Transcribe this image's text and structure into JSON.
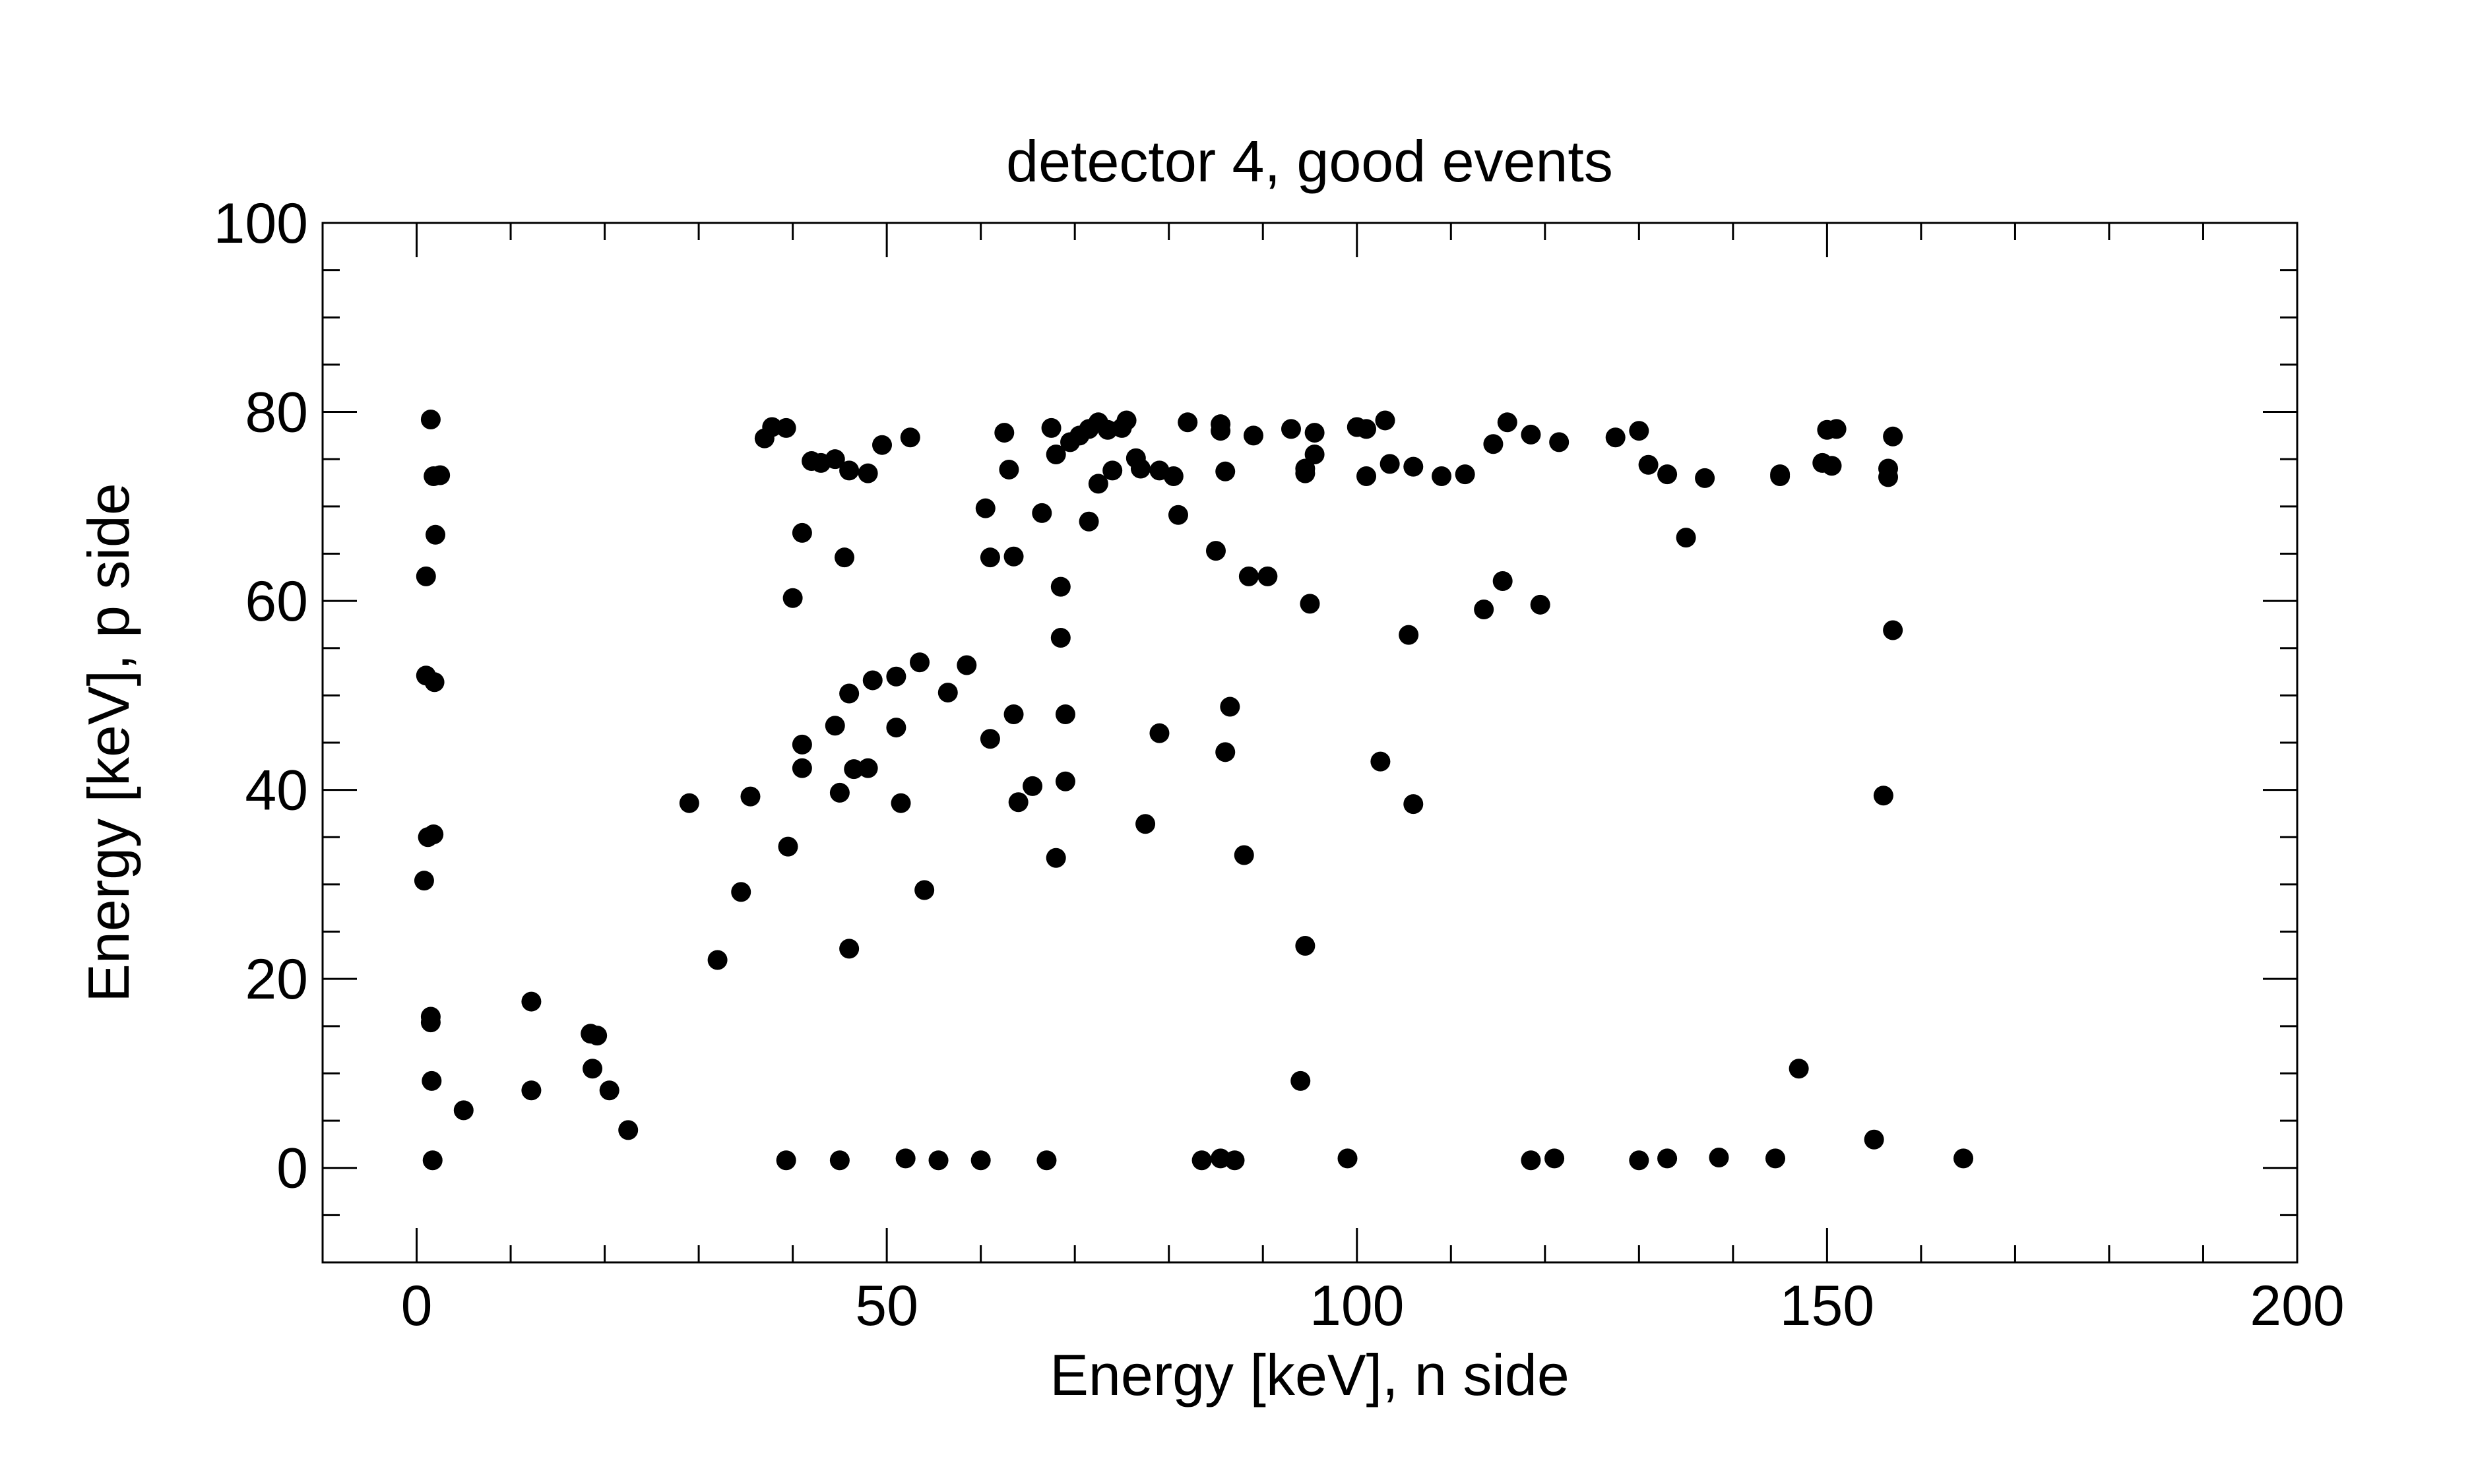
{
  "chart_data": {
    "type": "scatter",
    "title": "detector 4, good events",
    "xlabel": "Energy [keV], n side",
    "ylabel": "Energy [keV], p side",
    "xlim": [
      -10,
      200
    ],
    "ylim": [
      -10,
      100
    ],
    "x_ticks": [
      0,
      50,
      100,
      150,
      200
    ],
    "y_ticks": [
      0,
      20,
      40,
      60,
      80,
      100
    ],
    "x_minor_step": 10,
    "y_minor_step": 5,
    "grid": false,
    "legend": "none",
    "marker_color": "#000000",
    "series": [
      {
        "points": [
          [
            1.5,
            79.2
          ],
          [
            1.8,
            73.2
          ],
          [
            2.5,
            73.3
          ],
          [
            2.0,
            67.0
          ],
          [
            1.0,
            62.6
          ],
          [
            1.0,
            52.1
          ],
          [
            1.9,
            51.4
          ],
          [
            1.2,
            35.0
          ],
          [
            1.8,
            35.3
          ],
          [
            0.8,
            30.4
          ],
          [
            1.5,
            16.0
          ],
          [
            1.5,
            15.4
          ],
          [
            1.6,
            9.2
          ],
          [
            1.7,
            0.8
          ],
          [
            5.0,
            6.1
          ],
          [
            12.2,
            17.6
          ],
          [
            12.2,
            8.2
          ],
          [
            18.5,
            14.2
          ],
          [
            19.2,
            14.0
          ],
          [
            18.7,
            10.5
          ],
          [
            20.5,
            8.2
          ],
          [
            22.5,
            4.0
          ],
          [
            29.0,
            38.6
          ],
          [
            32.0,
            22.0
          ],
          [
            34.5,
            29.2
          ],
          [
            35.5,
            39.3
          ],
          [
            37.0,
            77.2
          ],
          [
            37.8,
            78.4
          ],
          [
            39.3,
            78.3
          ],
          [
            40.0,
            60.3
          ],
          [
            39.5,
            34.0
          ],
          [
            39.3,
            0.8
          ],
          [
            41.0,
            67.2
          ],
          [
            41.0,
            44.8
          ],
          [
            41.0,
            42.3
          ],
          [
            42.0,
            74.8
          ],
          [
            43.0,
            74.6
          ],
          [
            44.5,
            75.0
          ],
          [
            44.5,
            46.8
          ],
          [
            45.0,
            39.7
          ],
          [
            45.5,
            64.6
          ],
          [
            45.0,
            0.8
          ],
          [
            46.0,
            73.8
          ],
          [
            46.0,
            50.2
          ],
          [
            46.0,
            23.2
          ],
          [
            46.5,
            42.2
          ],
          [
            48.0,
            73.5
          ],
          [
            48.0,
            42.3
          ],
          [
            48.5,
            51.6
          ],
          [
            49.5,
            76.5
          ],
          [
            51.0,
            52.0
          ],
          [
            51.0,
            46.6
          ],
          [
            51.5,
            38.6
          ],
          [
            52.0,
            1.0
          ],
          [
            52.5,
            77.3
          ],
          [
            53.5,
            53.5
          ],
          [
            54.0,
            29.4
          ],
          [
            55.5,
            0.8
          ],
          [
            56.5,
            50.3
          ],
          [
            58.5,
            53.2
          ],
          [
            60.0,
            0.8
          ],
          [
            60.5,
            69.8
          ],
          [
            61.0,
            64.6
          ],
          [
            61.0,
            45.4
          ],
          [
            62.5,
            77.8
          ],
          [
            63.0,
            73.9
          ],
          [
            63.5,
            64.7
          ],
          [
            63.5,
            48.0
          ],
          [
            64.0,
            38.7
          ],
          [
            65.5,
            40.4
          ],
          [
            66.5,
            69.3
          ],
          [
            67.0,
            0.8
          ],
          [
            67.5,
            78.3
          ],
          [
            68.0,
            32.8
          ],
          [
            68.0,
            75.5
          ],
          [
            68.5,
            61.5
          ],
          [
            68.5,
            56.1
          ],
          [
            69.0,
            48.0
          ],
          [
            69.0,
            40.9
          ],
          [
            69.5,
            76.8
          ],
          [
            70.5,
            77.5
          ],
          [
            71.5,
            78.2
          ],
          [
            71.5,
            68.4
          ],
          [
            72.5,
            78.9
          ],
          [
            72.5,
            72.4
          ],
          [
            73.5,
            78.1
          ],
          [
            74.0,
            73.8
          ],
          [
            75.0,
            78.3
          ],
          [
            75.5,
            79.1
          ],
          [
            76.5,
            75.1
          ],
          [
            77.0,
            74.0
          ],
          [
            77.5,
            36.4
          ],
          [
            79.0,
            73.8
          ],
          [
            79.0,
            46.0
          ],
          [
            80.5,
            73.2
          ],
          [
            81.0,
            69.1
          ],
          [
            82.0,
            78.9
          ],
          [
            83.5,
            0.8
          ],
          [
            85.0,
            65.3
          ],
          [
            85.5,
            78.7
          ],
          [
            85.5,
            78.0
          ],
          [
            86.0,
            73.7
          ],
          [
            85.5,
            1.0
          ],
          [
            86.0,
            44.0
          ],
          [
            86.5,
            48.8
          ],
          [
            87.0,
            0.8
          ],
          [
            88.0,
            33.1
          ],
          [
            88.5,
            62.6
          ],
          [
            89.0,
            77.5
          ],
          [
            90.5,
            62.6
          ],
          [
            93.0,
            78.2
          ],
          [
            94.0,
            9.2
          ],
          [
            94.5,
            74.0
          ],
          [
            94.5,
            73.5
          ],
          [
            94.5,
            23.5
          ],
          [
            95.0,
            59.7
          ],
          [
            95.5,
            75.5
          ],
          [
            95.5,
            77.8
          ],
          [
            99.0,
            1.0
          ],
          [
            100.0,
            78.4
          ],
          [
            101.0,
            78.2
          ],
          [
            101.0,
            73.2
          ],
          [
            102.5,
            43.0
          ],
          [
            103.0,
            79.1
          ],
          [
            103.5,
            74.5
          ],
          [
            105.5,
            56.4
          ],
          [
            106.0,
            38.5
          ],
          [
            106.0,
            74.2
          ],
          [
            109.0,
            73.2
          ],
          [
            111.5,
            73.4
          ],
          [
            113.5,
            59.1
          ],
          [
            114.5,
            76.6
          ],
          [
            115.5,
            62.1
          ],
          [
            116.0,
            78.9
          ],
          [
            118.5,
            77.6
          ],
          [
            118.5,
            0.8
          ],
          [
            119.5,
            59.6
          ],
          [
            121.0,
            1.0
          ],
          [
            121.5,
            76.8
          ],
          [
            127.5,
            77.3
          ],
          [
            130.0,
            78.0
          ],
          [
            130.0,
            0.8
          ],
          [
            131.0,
            74.4
          ],
          [
            133.0,
            73.4
          ],
          [
            133.0,
            1.0
          ],
          [
            135.0,
            66.7
          ],
          [
            137.0,
            73.0
          ],
          [
            138.5,
            1.1
          ],
          [
            144.5,
            1.0
          ],
          [
            145.0,
            73.4
          ],
          [
            145.0,
            73.2
          ],
          [
            147.0,
            10.5
          ],
          [
            149.5,
            74.6
          ],
          [
            150.0,
            78.1
          ],
          [
            150.5,
            74.3
          ],
          [
            151.0,
            78.2
          ],
          [
            155.0,
            3.0
          ],
          [
            156.0,
            39.4
          ],
          [
            156.5,
            74.0
          ],
          [
            156.5,
            73.1
          ],
          [
            157.0,
            77.4
          ],
          [
            157.0,
            56.9
          ],
          [
            164.5,
            1.0
          ]
        ]
      }
    ]
  }
}
